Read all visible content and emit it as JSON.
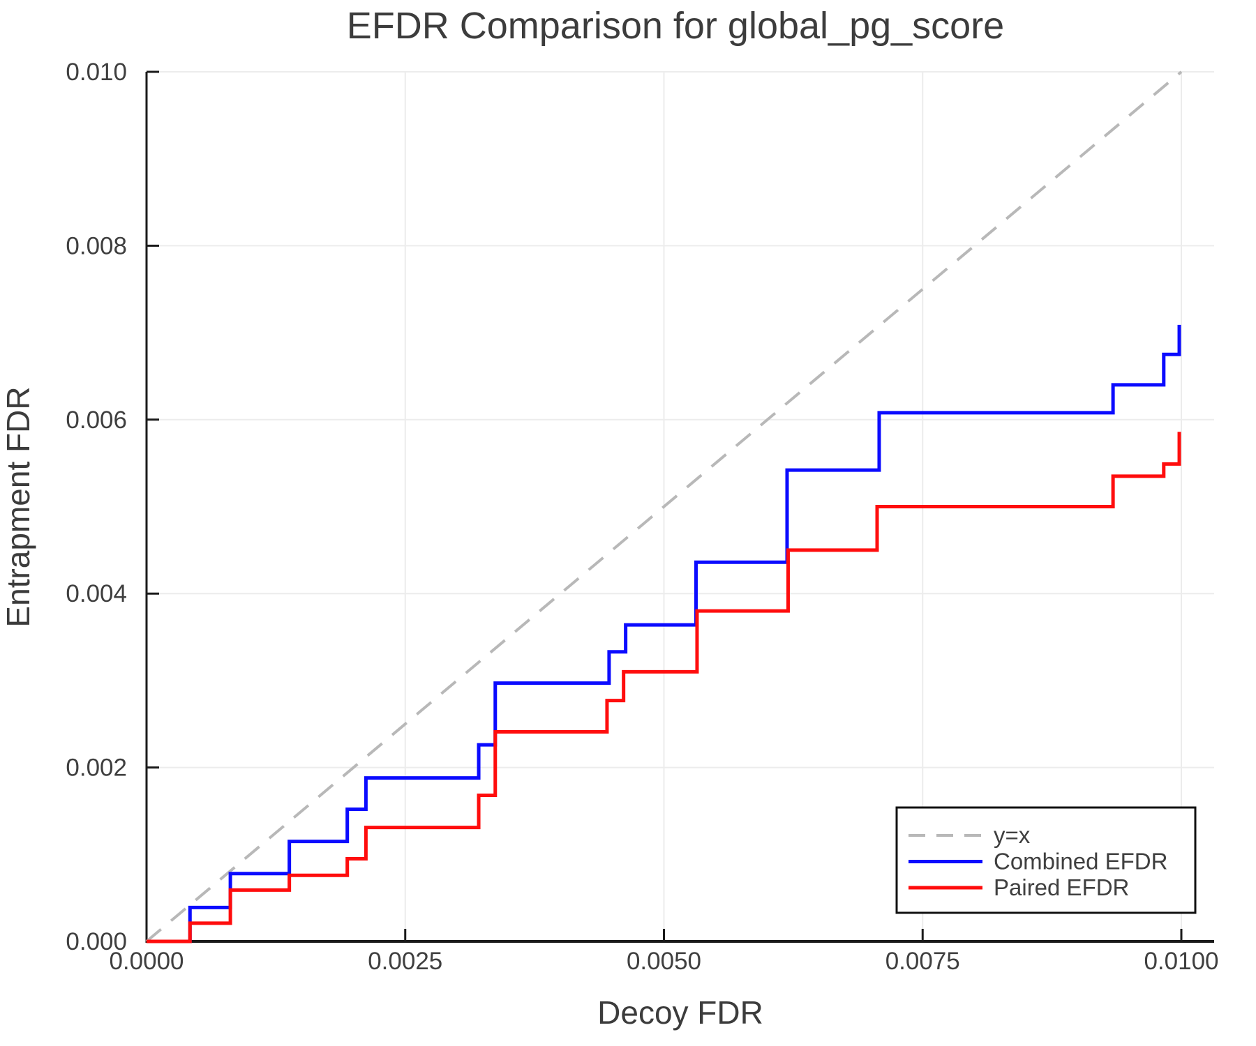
{
  "page": {
    "background": "#ffffff"
  },
  "chart_data": {
    "type": "line",
    "title": "EFDR Comparison for global_pg_score",
    "xlabel": "Decoy FDR",
    "ylabel": "Entrapment FDR",
    "xlim": [
      0.0,
      0.01
    ],
    "ylim": [
      0.0,
      0.01
    ],
    "grid": true,
    "grid_color": "#ececec",
    "axis_color": "#1a1a1a",
    "tick_direction": "in",
    "x_ticks": [
      {
        "value": 0.0,
        "label": "0.0000"
      },
      {
        "value": 0.0025,
        "label": "0.0025"
      },
      {
        "value": 0.005,
        "label": "0.0050"
      },
      {
        "value": 0.0075,
        "label": "0.0075"
      },
      {
        "value": 0.01,
        "label": "0.0100"
      }
    ],
    "y_ticks": [
      {
        "value": 0.0,
        "label": "0.000"
      },
      {
        "value": 0.002,
        "label": "0.002"
      },
      {
        "value": 0.004,
        "label": "0.004"
      },
      {
        "value": 0.006,
        "label": "0.006"
      },
      {
        "value": 0.008,
        "label": "0.008"
      },
      {
        "value": 0.01,
        "label": "0.010"
      }
    ],
    "legend": {
      "position": "lower right",
      "border_color": "#111111",
      "background": "#ffffff"
    },
    "series": [
      {
        "name": "y=x",
        "kind": "line",
        "style": "dashed",
        "color": "#b8b8b8",
        "width": 4,
        "points": [
          [
            0.0,
            0.0
          ],
          [
            0.01,
            0.01
          ]
        ]
      },
      {
        "name": "Combined EFDR",
        "kind": "step",
        "style": "solid",
        "color": "#0b0bff",
        "width": 5,
        "start": [
          0.0,
          0.0
        ],
        "steps": [
          [
            0.00042,
            0.00039
          ],
          [
            0.00081,
            0.00078
          ],
          [
            0.00138,
            0.00115
          ],
          [
            0.00194,
            0.00152
          ],
          [
            0.00212,
            0.00188
          ],
          [
            0.00321,
            0.00226
          ],
          [
            0.00337,
            0.00297
          ],
          [
            0.00447,
            0.00333
          ],
          [
            0.00463,
            0.00364
          ],
          [
            0.00531,
            0.00436
          ],
          [
            0.00619,
            0.00542
          ],
          [
            0.00708,
            0.00608
          ],
          [
            0.00934,
            0.0064
          ],
          [
            0.00983,
            0.00675
          ],
          [
            0.00998,
            0.00709
          ]
        ]
      },
      {
        "name": "Paired EFDR",
        "kind": "step",
        "style": "solid",
        "color": "#ff0d0d",
        "width": 5,
        "start": [
          0.0,
          0.0
        ],
        "steps": [
          [
            0.00042,
            0.00021
          ],
          [
            0.00081,
            0.00059
          ],
          [
            0.00138,
            0.00076
          ],
          [
            0.00194,
            0.00095
          ],
          [
            0.00212,
            0.00131
          ],
          [
            0.00321,
            0.00168
          ],
          [
            0.00337,
            0.00241
          ],
          [
            0.00445,
            0.00277
          ],
          [
            0.00461,
            0.0031
          ],
          [
            0.00532,
            0.0038
          ],
          [
            0.0062,
            0.0045
          ],
          [
            0.00706,
            0.005
          ],
          [
            0.00934,
            0.00535
          ],
          [
            0.00983,
            0.00549
          ],
          [
            0.00998,
            0.00586
          ]
        ]
      }
    ]
  }
}
